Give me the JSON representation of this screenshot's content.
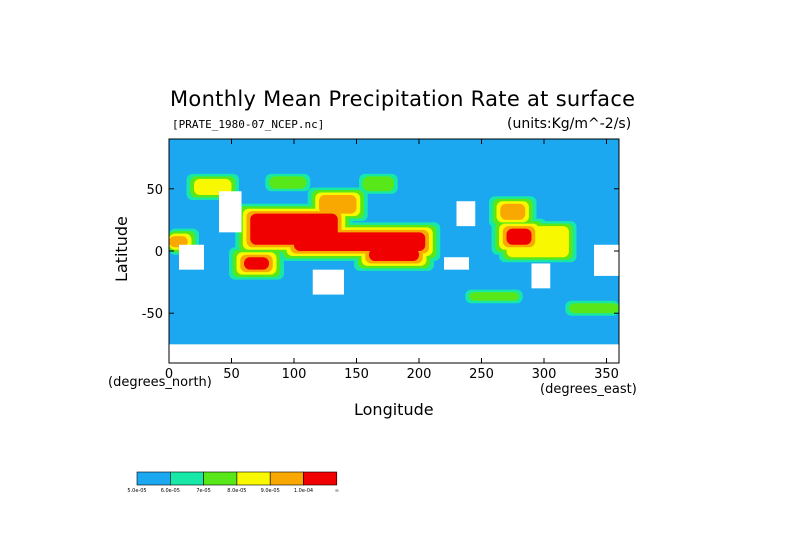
{
  "chart_data": {
    "type": "heatmap",
    "title": "Monthly Mean Precipitation Rate at surface",
    "subtitle_left": "[PRATE_1980-07_NCEP.nc]",
    "subtitle_right": "(units:Kg/m^-2/s)",
    "xlabel": "Longitude",
    "ylabel": "Latitude",
    "x_units": "(degrees_east)",
    "y_units": "(degrees_north)",
    "xlim": [
      0,
      360
    ],
    "ylim": [
      -90,
      90
    ],
    "x_ticks": [
      0,
      50,
      100,
      150,
      200,
      250,
      300,
      350
    ],
    "y_ticks": [
      -50,
      0,
      50
    ],
    "grid": false,
    "colorbar": {
      "colors": [
        "#1ca8f0",
        "#17e8a8",
        "#58e81a",
        "#f8f800",
        "#f8a800",
        "#f00000"
      ],
      "labels": [
        "5.0e-05",
        "6.0e-05",
        "7e-05",
        "8.0e-05",
        "9.0e-05",
        "1.0e-04",
        "∞"
      ]
    },
    "background_color": "#1ca8f0",
    "regions": [
      {
        "lon": [
          65,
          135
        ],
        "lat": [
          5,
          30
        ],
        "level": 5
      },
      {
        "lon": [
          100,
          205
        ],
        "lat": [
          0,
          15
        ],
        "level": 5
      },
      {
        "lon": [
          160,
          200
        ],
        "lat": [
          -8,
          2
        ],
        "level": 5
      },
      {
        "lon": [
          60,
          80
        ],
        "lat": [
          -15,
          -5
        ],
        "level": 5
      },
      {
        "lon": [
          270,
          290
        ],
        "lat": [
          5,
          18
        ],
        "level": 5
      },
      {
        "lon": [
          120,
          150
        ],
        "lat": [
          30,
          45
        ],
        "level": 4
      },
      {
        "lon": [
          265,
          285
        ],
        "lat": [
          25,
          38
        ],
        "level": 4
      },
      {
        "lon": [
          0,
          15
        ],
        "lat": [
          3,
          12
        ],
        "level": 4
      },
      {
        "lon": [
          270,
          320
        ],
        "lat": [
          -5,
          20
        ],
        "level": 3
      },
      {
        "lon": [
          20,
          50
        ],
        "lat": [
          45,
          58
        ],
        "level": 3
      },
      {
        "lon": [
          240,
          280
        ],
        "lat": [
          -40,
          -33
        ],
        "level": 2
      },
      {
        "lon": [
          320,
          360
        ],
        "lat": [
          -50,
          -42
        ],
        "level": 2
      },
      {
        "lon": [
          80,
          110
        ],
        "lat": [
          50,
          60
        ],
        "level": 2
      },
      {
        "lon": [
          155,
          180
        ],
        "lat": [
          48,
          60
        ],
        "level": 2
      }
    ],
    "no_data": [
      {
        "lon": [
          40,
          58
        ],
        "lat": [
          15,
          48
        ]
      },
      {
        "lon": [
          8,
          28
        ],
        "lat": [
          -15,
          5
        ]
      },
      {
        "lon": [
          115,
          140
        ],
        "lat": [
          -35,
          -15
        ]
      },
      {
        "lon": [
          230,
          245
        ],
        "lat": [
          20,
          40
        ]
      },
      {
        "lon": [
          290,
          305
        ],
        "lat": [
          -30,
          -10
        ]
      },
      {
        "lon": [
          220,
          240
        ],
        "lat": [
          -15,
          -5
        ]
      },
      {
        "lon": [
          0,
          360
        ],
        "lat": [
          -90,
          -75
        ]
      },
      {
        "lon": [
          340,
          360
        ],
        "lat": [
          -20,
          5
        ]
      }
    ]
  }
}
